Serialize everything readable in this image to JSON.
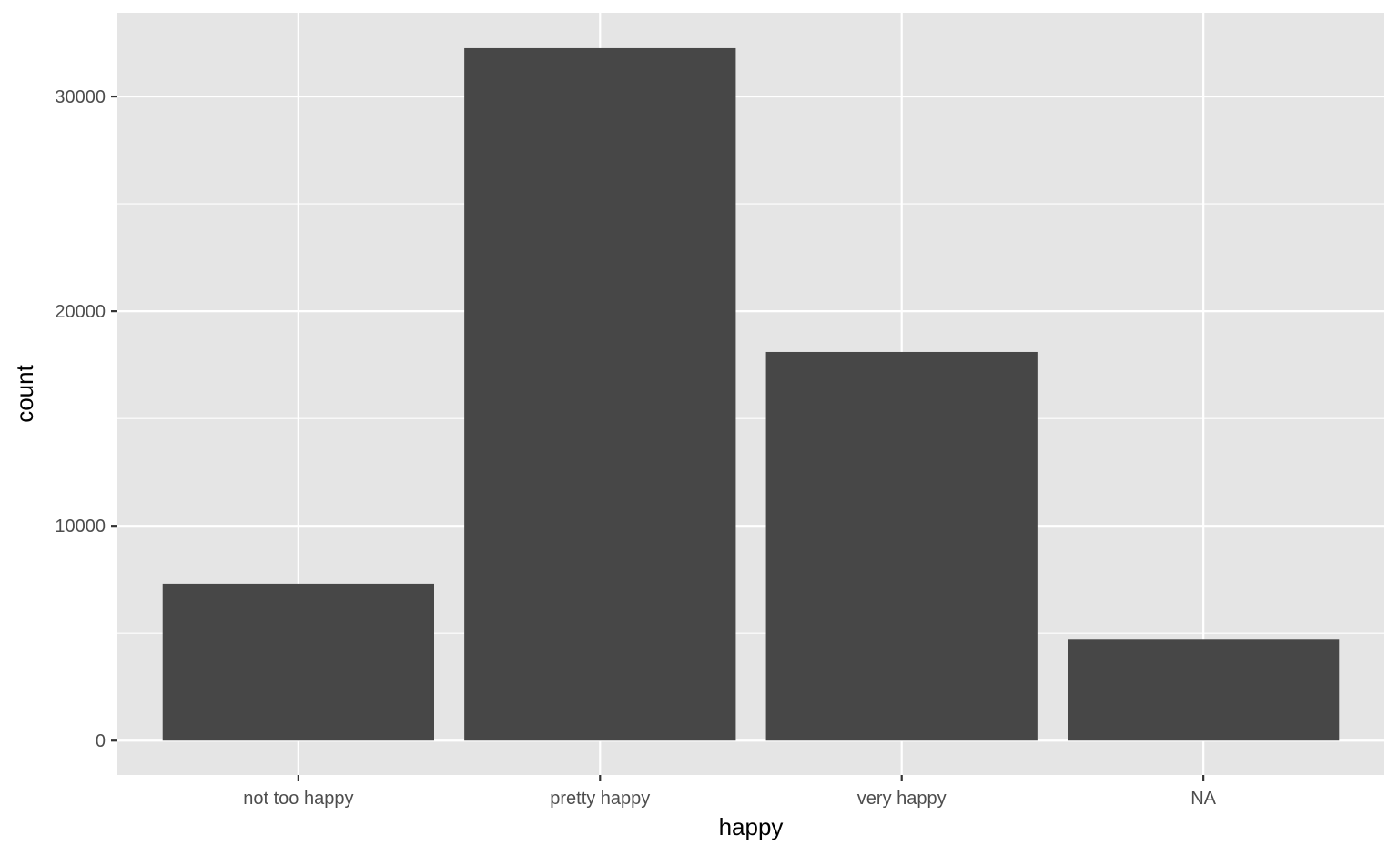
{
  "chart_data": {
    "type": "bar",
    "title": "",
    "xlabel": "happy",
    "ylabel": "count",
    "categories": [
      "not too happy",
      "pretty happy",
      "very happy",
      "NA"
    ],
    "values": [
      7300,
      32250,
      18100,
      4700
    ],
    "ylim": [
      -1600,
      33900
    ],
    "yticks": [
      0,
      10000,
      20000,
      30000
    ],
    "ytick_labels": [
      "0",
      "10000",
      "20000",
      "30000"
    ],
    "grid": true,
    "legend": "none",
    "colors": {
      "panel_background": "#e5e5e5",
      "grid_line": "#ffffff",
      "bar_fill": "#474747",
      "tick_mark": "#333333",
      "tick_label": "#4d4d4d",
      "axis_title": "#000000"
    }
  }
}
